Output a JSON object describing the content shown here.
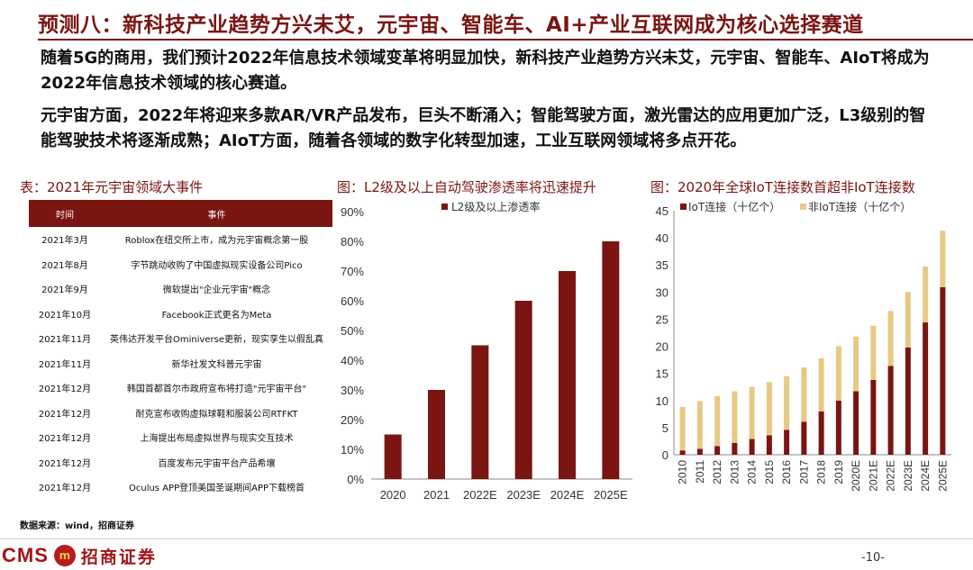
{
  "title": "预测八：新科技产业趋势方兴未艾，元宇宙、智能车、AI+产业互联网成为核心选择赛道",
  "paragraphs": [
    "随着5G的商用，我们预计2022年信息技术领域变革将明显加快，新科技产业趋势方兴未艾，元宇宙、智能车、AIoT将成为2022年信息技术领域的核心赛道。",
    "元宇宙方面，2022年将迎来多款AR/VR产品发布，巨头不断涌入；智能驾驶方面，激光雷达的应用更加广泛，L3级别的智能驾驶技术将逐渐成熟；AIoT方面，随着各领域的数字化转型加速，工业互联网领域将多点开花。"
  ],
  "events_table": {
    "title": "表：2021年元宇宙领域大事件",
    "headers": [
      "时间",
      "事件"
    ],
    "rows": [
      [
        "2021年3月",
        "Roblox在纽交所上市，成为元宇宙概念第一股"
      ],
      [
        "2021年8月",
        "字节跳动收购了中国虚拟现实设备公司Pico"
      ],
      [
        "2021年9月",
        "微软提出\"企业元宇宙\"概念"
      ],
      [
        "2021年10月",
        "Facebook正式更名为Meta"
      ],
      [
        "2021年11月",
        "英伟达开发平台Ominiverse更新，现实孪生以假乱真"
      ],
      [
        "2021年11月",
        "新华社发文科普元宇宙"
      ],
      [
        "2021年12月",
        "韩国首都首尔市政府宣布将打造\"元宇宙平台\""
      ],
      [
        "2021年12月",
        "耐克宣布收购虚拟球鞋和服装公司RTFKT"
      ],
      [
        "2021年12月",
        "上海提出布局虚拟世界与现实交互技术"
      ],
      [
        "2021年12月",
        "百度发布元宇宙平台产品希壤"
      ],
      [
        "2021年12月",
        "Oculus APP登顶美国圣诞期间APP下载榜首"
      ]
    ]
  },
  "chart_titles": {
    "l2": "图：L2级及以上自动驾驶渗透率将迅速提升",
    "iot": "图：2020年全球IoT连接数首超非IoT连接数"
  },
  "chart_data": [
    {
      "type": "bar",
      "title": "图：L2级及以上自动驾驶渗透率将迅速提升",
      "categories": [
        "2020",
        "2021",
        "2022E",
        "2023E",
        "2024E",
        "2025E"
      ],
      "series": [
        {
          "name": "L2级及以上渗透率",
          "values": [
            15,
            30,
            45,
            60,
            70,
            80
          ]
        }
      ],
      "ylim": [
        0,
        90
      ],
      "yticks": [
        0,
        10,
        20,
        30,
        40,
        50,
        60,
        70,
        80,
        90
      ],
      "ytick_labels": [
        "0%",
        "10%",
        "20%",
        "30%",
        "40%",
        "50%",
        "60%",
        "70%",
        "80%",
        "90%"
      ],
      "legend": "top",
      "color": "#7a1512"
    },
    {
      "type": "bar",
      "stacked": true,
      "title": "图：2020年全球IoT连接数首超非IoT连接数",
      "categories": [
        "2010",
        "2011",
        "2012",
        "2013",
        "2014",
        "2015",
        "2016",
        "2017",
        "2018",
        "2019",
        "2020E",
        "2021E",
        "2022E",
        "2023E",
        "2024E",
        "2025E"
      ],
      "series": [
        {
          "name": "IoT连接（十亿个）",
          "color": "#7a1512",
          "values": [
            0.8,
            1.1,
            1.6,
            2.2,
            2.9,
            3.6,
            4.6,
            6.1,
            8.0,
            10.0,
            11.7,
            13.8,
            16.4,
            19.8,
            24.4,
            30.9
          ]
        },
        {
          "name": "非IoT连接（十亿个）",
          "color": "#e7c984",
          "values": [
            8.0,
            8.8,
            9.2,
            9.5,
            9.6,
            9.8,
            9.9,
            10.0,
            9.8,
            10.0,
            10.1,
            10.0,
            10.1,
            10.2,
            10.3,
            10.4
          ]
        }
      ],
      "ylim": [
        0,
        45
      ],
      "yticks": [
        0,
        5,
        10,
        15,
        20,
        25,
        30,
        35,
        40,
        45
      ],
      "legend": "top"
    }
  ],
  "source": "数据来源：wind，招商证券",
  "logo": {
    "cms": "CMS",
    "cn": "招商证券",
    "mark": "m"
  },
  "page_number": "-10-"
}
